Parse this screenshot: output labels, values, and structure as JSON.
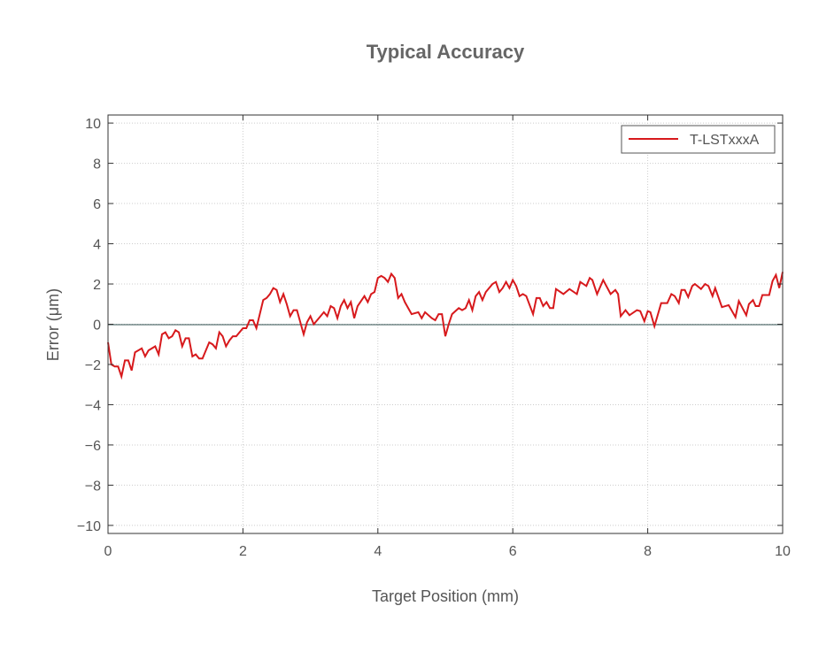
{
  "chart_data": {
    "type": "line",
    "title": "Typical Accuracy",
    "xlabel": "Target Position (mm)",
    "ylabel": "Error (μm)",
    "xlim": [
      0,
      10
    ],
    "ylim": [
      -10.4,
      10.4
    ],
    "xticks": [
      0,
      2,
      4,
      6,
      8,
      10
    ],
    "yticks": [
      -10,
      -8,
      -6,
      -4,
      -2,
      0,
      2,
      4,
      6,
      8,
      10
    ],
    "xtick_labels": [
      "0",
      "2",
      "4",
      "6",
      "8",
      "10"
    ],
    "ytick_labels": [
      "−10",
      "−8",
      "−6",
      "−4",
      "−2",
      "0",
      "2",
      "4",
      "6",
      "8",
      "10"
    ],
    "grid": true,
    "legend_position": "top-right",
    "series": [
      {
        "name": "T-LSTxxxA",
        "color": "#d7191c",
        "x": [
          0,
          0.05,
          0.1,
          0.15,
          0.2,
          0.25,
          0.3,
          0.35,
          0.4,
          0.5,
          0.55,
          0.6,
          0.7,
          0.75,
          0.8,
          0.85,
          0.9,
          0.95,
          1.0,
          1.05,
          1.1,
          1.15,
          1.2,
          1.25,
          1.3,
          1.35,
          1.4,
          1.5,
          1.55,
          1.6,
          1.65,
          1.7,
          1.75,
          1.8,
          1.85,
          1.9,
          2.0,
          2.05,
          2.1,
          2.15,
          2.2,
          2.3,
          2.35,
          2.4,
          2.45,
          2.5,
          2.55,
          2.6,
          2.65,
          2.7,
          2.75,
          2.8,
          2.9,
          2.95,
          3.0,
          3.05,
          3.1,
          3.2,
          3.25,
          3.3,
          3.35,
          3.4,
          3.45,
          3.5,
          3.55,
          3.6,
          3.65,
          3.7,
          3.8,
          3.85,
          3.9,
          3.95,
          4.0,
          4.05,
          4.1,
          4.15,
          4.2,
          4.25,
          4.3,
          4.35,
          4.4,
          4.5,
          4.6,
          4.65,
          4.7,
          4.8,
          4.85,
          4.9,
          4.95,
          5.0,
          5.05,
          5.1,
          5.2,
          5.25,
          5.3,
          5.35,
          5.4,
          5.45,
          5.5,
          5.55,
          5.6,
          5.7,
          5.75,
          5.8,
          5.85,
          5.9,
          5.95,
          6.0,
          6.05,
          6.1,
          6.15,
          6.2,
          6.3,
          6.35,
          6.4,
          6.45,
          6.5,
          6.55,
          6.6,
          6.64,
          6.75,
          6.84,
          6.95,
          7.0,
          7.09,
          7.14,
          7.18,
          7.25,
          7.34,
          7.45,
          7.52,
          7.56,
          7.6,
          7.67,
          7.73,
          7.84,
          7.89,
          7.95,
          8.0,
          8.04,
          8.1,
          8.2,
          8.29,
          8.35,
          8.4,
          8.46,
          8.5,
          8.55,
          8.6,
          8.66,
          8.7,
          8.79,
          8.85,
          8.9,
          8.96,
          9.0,
          9.1,
          9.2,
          9.3,
          9.35,
          9.46,
          9.5,
          9.56,
          9.6,
          9.65,
          9.7,
          9.8,
          9.85,
          9.9,
          9.95,
          10.0
        ],
        "y": [
          -0.9,
          -2.0,
          -2.1,
          -2.1,
          -2.6,
          -1.8,
          -1.8,
          -2.3,
          -1.4,
          -1.2,
          -1.6,
          -1.3,
          -1.1,
          -1.5,
          -0.5,
          -0.4,
          -0.7,
          -0.6,
          -0.3,
          -0.4,
          -1.1,
          -0.7,
          -0.7,
          -1.6,
          -1.5,
          -1.7,
          -1.7,
          -0.9,
          -1.0,
          -1.2,
          -0.4,
          -0.6,
          -1.1,
          -0.8,
          -0.6,
          -0.6,
          -0.2,
          -0.2,
          0.2,
          0.2,
          -0.2,
          1.2,
          1.3,
          1.5,
          1.8,
          1.7,
          1.1,
          1.5,
          1.0,
          0.4,
          0.7,
          0.7,
          -0.5,
          0.1,
          0.4,
          0.0,
          0.2,
          0.6,
          0.4,
          0.9,
          0.8,
          0.3,
          0.9,
          1.2,
          0.8,
          1.1,
          0.3,
          0.9,
          1.4,
          1.1,
          1.5,
          1.6,
          2.3,
          2.4,
          2.3,
          2.1,
          2.5,
          2.3,
          1.3,
          1.5,
          1.1,
          0.5,
          0.6,
          0.3,
          0.6,
          0.3,
          0.2,
          0.5,
          0.5,
          -0.6,
          0.0,
          0.5,
          0.8,
          0.7,
          0.8,
          1.2,
          0.7,
          1.4,
          1.6,
          1.2,
          1.6,
          2.0,
          2.1,
          1.6,
          1.8,
          2.1,
          1.8,
          2.2,
          1.9,
          1.4,
          1.5,
          1.4,
          0.5,
          1.3,
          1.3,
          0.9,
          1.1,
          0.8,
          0.8,
          1.75,
          1.5,
          1.75,
          1.5,
          2.1,
          1.9,
          2.3,
          2.2,
          1.5,
          2.2,
          1.5,
          1.7,
          1.5,
          0.4,
          0.7,
          0.45,
          0.7,
          0.65,
          0.15,
          0.65,
          0.6,
          -0.1,
          1.05,
          1.05,
          1.5,
          1.4,
          1.05,
          1.7,
          1.7,
          1.35,
          1.9,
          2.0,
          1.75,
          2.0,
          1.9,
          1.4,
          1.8,
          0.85,
          0.95,
          0.35,
          1.15,
          0.45,
          1.0,
          1.2,
          0.9,
          0.9,
          1.45,
          1.45,
          2.15,
          2.45,
          1.8,
          2.6
        ]
      }
    ]
  }
}
